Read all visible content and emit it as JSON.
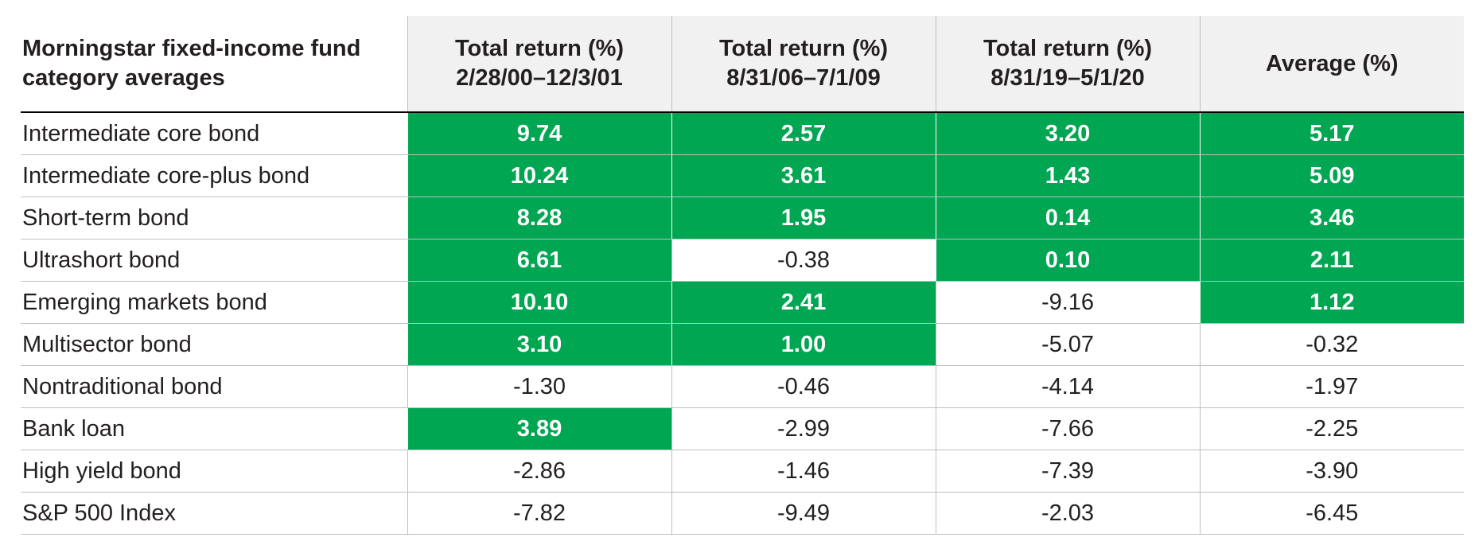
{
  "colors": {
    "highlight": "#00a651",
    "header_bg": "#f1f1f2",
    "text": "#231f20"
  },
  "chart_data": {
    "type": "table",
    "corner_header": [
      "Morningstar fixed-income fund",
      "category averages"
    ],
    "columns": [
      {
        "line1": "Total return (%)",
        "line2": "2/28/00–12/3/01"
      },
      {
        "line1": "Total return (%)",
        "line2": "8/31/06–7/1/09"
      },
      {
        "line1": "Total return (%)",
        "line2": "8/31/19–5/1/20"
      },
      {
        "line1": "Average (%)",
        "line2": ""
      }
    ],
    "rows": [
      {
        "label": "Intermediate core bond",
        "values": [
          "9.74",
          "2.57",
          "3.20",
          "5.17"
        ],
        "highlight": [
          true,
          true,
          true,
          true
        ]
      },
      {
        "label": "Intermediate core-plus bond",
        "values": [
          "10.24",
          "3.61",
          "1.43",
          "5.09"
        ],
        "highlight": [
          true,
          true,
          true,
          true
        ]
      },
      {
        "label": "Short-term bond",
        "values": [
          "8.28",
          "1.95",
          "0.14",
          "3.46"
        ],
        "highlight": [
          true,
          true,
          true,
          true
        ]
      },
      {
        "label": "Ultrashort bond",
        "values": [
          "6.61",
          "-0.38",
          "0.10",
          "2.11"
        ],
        "highlight": [
          true,
          false,
          true,
          true
        ]
      },
      {
        "label": "Emerging markets bond",
        "values": [
          "10.10",
          "2.41",
          "-9.16",
          "1.12"
        ],
        "highlight": [
          true,
          true,
          false,
          true
        ]
      },
      {
        "label": "Multisector bond",
        "values": [
          "3.10",
          "1.00",
          "-5.07",
          "-0.32"
        ],
        "highlight": [
          true,
          true,
          false,
          false
        ]
      },
      {
        "label": "Nontraditional bond",
        "values": [
          "-1.30",
          "-0.46",
          "-4.14",
          "-1.97"
        ],
        "highlight": [
          false,
          false,
          false,
          false
        ]
      },
      {
        "label": "Bank loan",
        "values": [
          "3.89",
          "-2.99",
          "-7.66",
          "-2.25"
        ],
        "highlight": [
          true,
          false,
          false,
          false
        ]
      },
      {
        "label": "High yield bond",
        "values": [
          "-2.86",
          "-1.46",
          "-7.39",
          "-3.90"
        ],
        "highlight": [
          false,
          false,
          false,
          false
        ]
      },
      {
        "label": "S&P 500 Index",
        "values": [
          "-7.82",
          "-9.49",
          "-2.03",
          "-6.45"
        ],
        "highlight": [
          false,
          false,
          false,
          false
        ]
      }
    ]
  }
}
